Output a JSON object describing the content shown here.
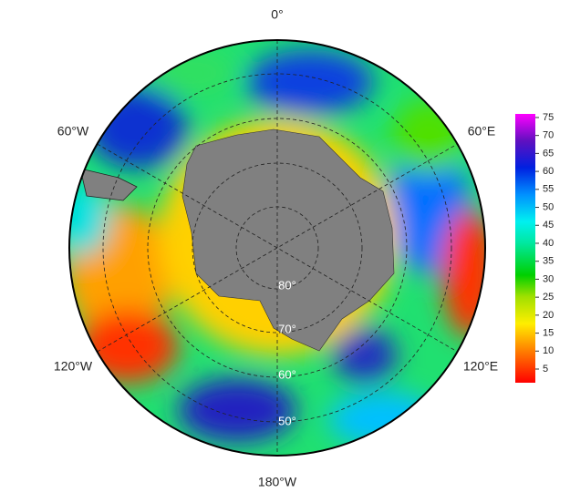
{
  "map": {
    "longitude_labels": [
      "0°",
      "60°E",
      "120°E",
      "180°W",
      "120°W",
      "60°W"
    ],
    "latitude_labels": [
      "80°",
      "70°",
      "60°",
      "50°"
    ]
  },
  "colorbar": {
    "lim": [
      1.2,
      76
    ],
    "ticks": [
      5,
      10,
      15,
      20,
      25,
      30,
      35,
      40,
      45,
      50,
      55,
      60,
      65,
      70,
      75
    ]
  }
}
